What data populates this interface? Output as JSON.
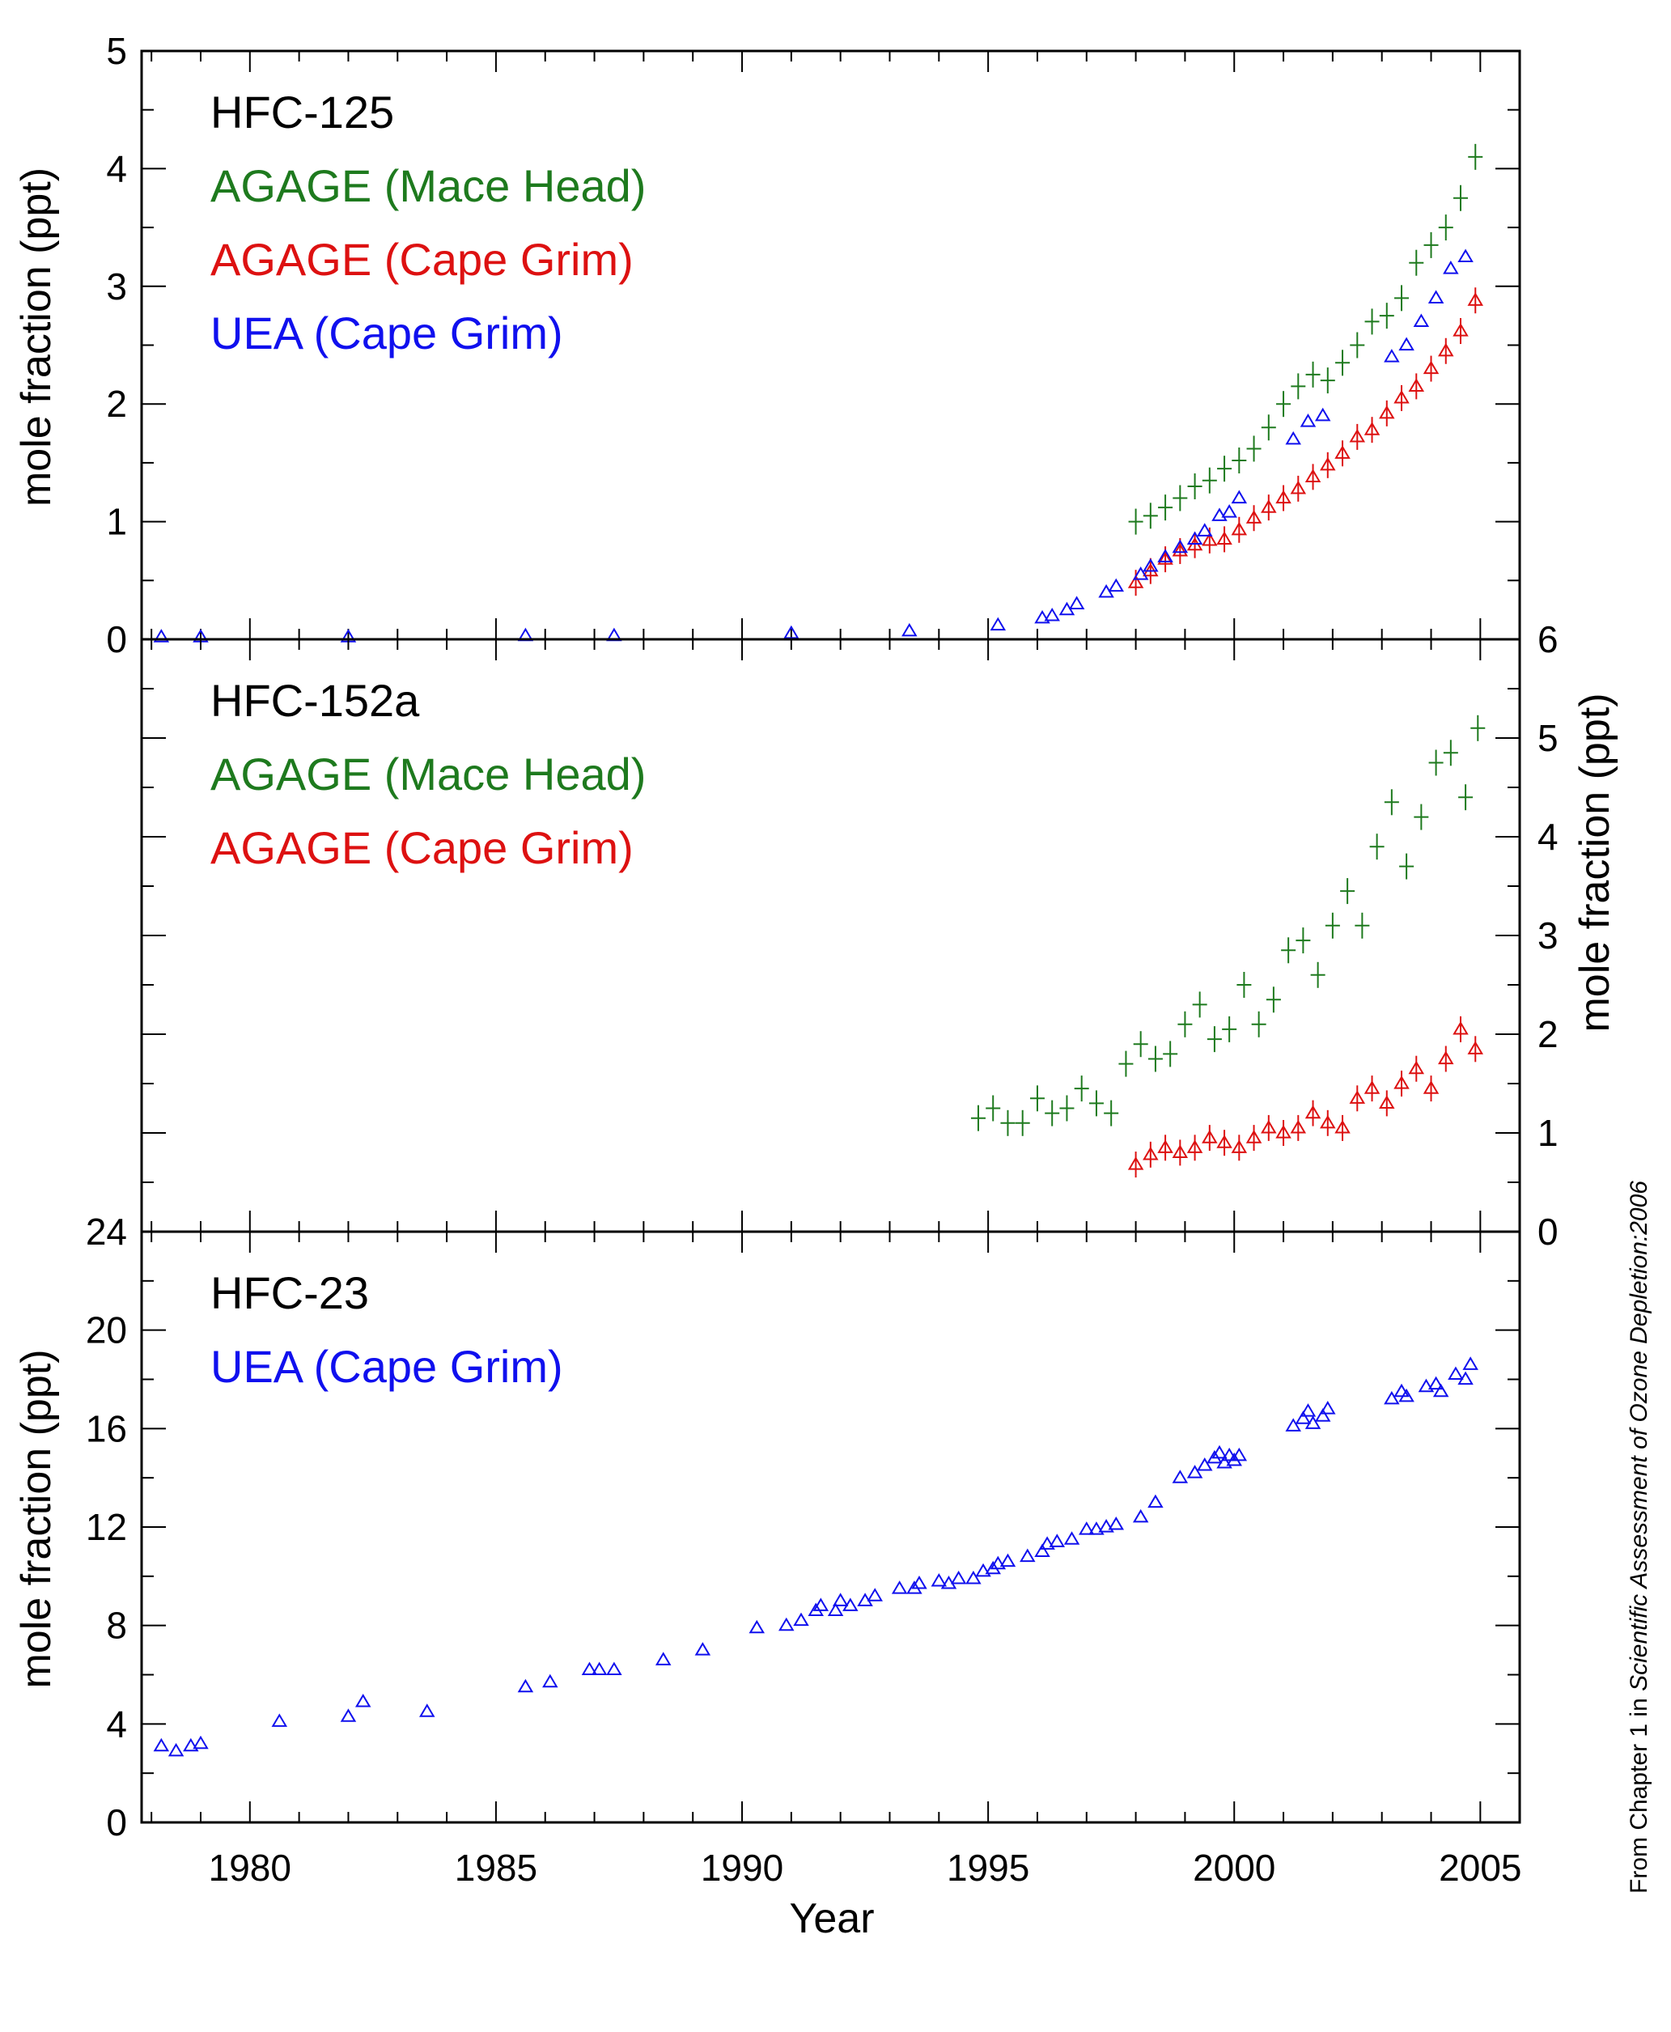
{
  "credit": {
    "prefix": "From Chapter 1 in ",
    "title": "Scientific Assessment of Ozone Depletion:2006"
  },
  "colors": {
    "green": "#1e7a1e",
    "red": "#dd1111",
    "blue": "#1010ee"
  },
  "chart_data": [
    {
      "type": "scatter",
      "title": "HFC-125",
      "ylabel": "mole fraction (ppt)",
      "xlabel": "",
      "xlim": [
        1977.8,
        2005.8
      ],
      "ylim": [
        0,
        5
      ],
      "yticks": [
        0,
        1,
        2,
        3,
        4,
        5
      ],
      "ytick_labels": [
        "0",
        "1",
        "2",
        "3",
        "4",
        "5"
      ],
      "yaxis_side": "left",
      "legend_position": "top-left",
      "grid": false,
      "series": [
        {
          "name": "AGAGE (Mace Head)",
          "color": "green",
          "marker": "plus-errorbar",
          "x": [
            1998.0,
            1998.3,
            1998.6,
            1998.9,
            1999.2,
            1999.5,
            1999.8,
            2000.1,
            2000.4,
            2000.7,
            2001.0,
            2001.3,
            2001.6,
            2001.9,
            2002.2,
            2002.5,
            2002.8,
            2003.1,
            2003.4,
            2003.7,
            2004.0,
            2004.3,
            2004.6,
            2004.9
          ],
          "y": [
            1.0,
            1.05,
            1.12,
            1.2,
            1.3,
            1.35,
            1.45,
            1.52,
            1.62,
            1.8,
            2.0,
            2.15,
            2.25,
            2.2,
            2.35,
            2.5,
            2.7,
            2.75,
            2.9,
            3.2,
            3.35,
            3.5,
            3.75,
            4.1
          ]
        },
        {
          "name": "AGAGE (Cape Grim)",
          "color": "red",
          "marker": "triangle-errorbar",
          "x": [
            1998.0,
            1998.3,
            1998.6,
            1998.9,
            1999.2,
            1999.5,
            1999.8,
            2000.1,
            2000.4,
            2000.7,
            2001.0,
            2001.3,
            2001.6,
            2001.9,
            2002.2,
            2002.5,
            2002.8,
            2003.1,
            2003.4,
            2003.7,
            2004.0,
            2004.3,
            2004.6,
            2004.9
          ],
          "y": [
            0.48,
            0.58,
            0.68,
            0.75,
            0.8,
            0.84,
            0.85,
            0.93,
            1.03,
            1.12,
            1.2,
            1.28,
            1.38,
            1.48,
            1.58,
            1.72,
            1.78,
            1.92,
            2.05,
            2.15,
            2.3,
            2.45,
            2.62,
            2.88
          ]
        },
        {
          "name": "UEA (Cape Grim)",
          "color": "blue",
          "marker": "triangle",
          "x": [
            1978.2,
            1979.0,
            1982.0,
            1985.6,
            1987.4,
            1991.0,
            1993.4,
            1995.2,
            1996.1,
            1996.3,
            1996.6,
            1996.8,
            1997.4,
            1997.6,
            1998.1,
            1998.3,
            1998.6,
            1998.9,
            1999.2,
            1999.4,
            1999.7,
            1999.9,
            2000.1,
            2001.2,
            2001.5,
            2001.8,
            2003.2,
            2003.5,
            2003.8,
            2004.1,
            2004.4,
            2004.7
          ],
          "y": [
            0.02,
            0.02,
            0.02,
            0.03,
            0.03,
            0.05,
            0.07,
            0.12,
            0.18,
            0.2,
            0.25,
            0.3,
            0.4,
            0.45,
            0.55,
            0.62,
            0.7,
            0.78,
            0.85,
            0.92,
            1.05,
            1.08,
            1.2,
            1.7,
            1.85,
            1.9,
            2.4,
            2.5,
            2.7,
            2.9,
            3.15,
            3.25
          ]
        }
      ]
    },
    {
      "type": "scatter",
      "title": "HFC-152a",
      "ylabel": "mole fraction (ppt)",
      "xlabel": "",
      "xlim": [
        1977.8,
        2005.8
      ],
      "ylim": [
        0,
        6
      ],
      "yticks": [
        0,
        1,
        2,
        3,
        4,
        5,
        6
      ],
      "ytick_labels": [
        "0",
        "1",
        "2",
        "3",
        "4",
        "5",
        "6"
      ],
      "yaxis_side": "right",
      "legend_position": "top-left",
      "grid": false,
      "series": [
        {
          "name": "AGAGE (Mace Head)",
          "color": "green",
          "marker": "plus-errorbar",
          "x": [
            1994.8,
            1995.1,
            1995.4,
            1995.7,
            1996.0,
            1996.3,
            1996.6,
            1996.9,
            1997.2,
            1997.5,
            1997.8,
            1998.1,
            1998.4,
            1998.7,
            1999.0,
            1999.3,
            1999.6,
            1999.9,
            2000.2,
            2000.5,
            2000.8,
            2001.1,
            2001.4,
            2001.7,
            2002.0,
            2002.3,
            2002.6,
            2002.9,
            2003.2,
            2003.5,
            2003.8,
            2004.1,
            2004.4,
            2004.7,
            2004.95
          ],
          "y": [
            1.15,
            1.25,
            1.1,
            1.1,
            1.35,
            1.2,
            1.25,
            1.45,
            1.3,
            1.2,
            1.7,
            1.9,
            1.75,
            1.8,
            2.1,
            2.3,
            1.95,
            2.05,
            2.5,
            2.1,
            2.35,
            2.85,
            2.95,
            2.6,
            3.1,
            3.45,
            3.1,
            3.9,
            4.35,
            3.7,
            4.2,
            4.75,
            4.85,
            4.4,
            5.1
          ]
        },
        {
          "name": "AGAGE (Cape Grim)",
          "color": "red",
          "marker": "triangle-errorbar",
          "x": [
            1998.0,
            1998.3,
            1998.6,
            1998.9,
            1999.2,
            1999.5,
            1999.8,
            2000.1,
            2000.4,
            2000.7,
            2001.0,
            2001.3,
            2001.6,
            2001.9,
            2002.2,
            2002.5,
            2002.8,
            2003.1,
            2003.4,
            2003.7,
            2004.0,
            2004.3,
            2004.6,
            2004.9
          ],
          "y": [
            0.68,
            0.78,
            0.85,
            0.8,
            0.85,
            0.95,
            0.9,
            0.85,
            0.95,
            1.05,
            1.0,
            1.05,
            1.2,
            1.1,
            1.05,
            1.35,
            1.45,
            1.3,
            1.5,
            1.65,
            1.45,
            1.75,
            2.05,
            1.85
          ]
        }
      ]
    },
    {
      "type": "scatter",
      "title": "HFC-23",
      "ylabel": "mole fraction (ppt)",
      "xlabel": "Year",
      "xlim": [
        1977.8,
        2005.8
      ],
      "ylim": [
        0,
        24
      ],
      "yticks": [
        0,
        4,
        8,
        12,
        16,
        20,
        24
      ],
      "ytick_labels": [
        "0",
        "4",
        "8",
        "12",
        "16",
        "20",
        "24"
      ],
      "xticks": [
        1980,
        1985,
        1990,
        1995,
        2000,
        2005
      ],
      "xtick_labels": [
        "1980",
        "1985",
        "1990",
        "1995",
        "2000",
        "2005"
      ],
      "yaxis_side": "left",
      "legend_position": "top-left",
      "grid": false,
      "series": [
        {
          "name": "UEA (Cape Grim)",
          "color": "blue",
          "marker": "triangle",
          "x": [
            1978.2,
            1978.5,
            1978.8,
            1979.0,
            1980.6,
            1982.0,
            1982.3,
            1983.6,
            1985.6,
            1986.1,
            1986.9,
            1987.1,
            1987.4,
            1988.4,
            1989.2,
            1990.3,
            1990.9,
            1991.2,
            1991.5,
            1991.6,
            1991.9,
            1992.0,
            1992.2,
            1992.5,
            1992.7,
            1993.2,
            1993.5,
            1993.6,
            1994.0,
            1994.2,
            1994.4,
            1994.7,
            1994.9,
            1995.1,
            1995.2,
            1995.4,
            1995.8,
            1996.1,
            1996.2,
            1996.4,
            1996.7,
            1997.0,
            1997.2,
            1997.4,
            1997.6,
            1998.1,
            1998.4,
            1998.9,
            1999.2,
            1999.4,
            1999.6,
            1999.7,
            1999.8,
            1999.9,
            2000.0,
            2000.1,
            2001.2,
            2001.4,
            2001.5,
            2001.6,
            2001.8,
            2001.9,
            2003.2,
            2003.4,
            2003.5,
            2003.9,
            2004.1,
            2004.2,
            2004.5,
            2004.7,
            2004.8
          ],
          "y": [
            3.1,
            2.9,
            3.1,
            3.2,
            4.1,
            4.3,
            4.9,
            4.5,
            5.5,
            5.7,
            6.2,
            6.2,
            6.2,
            6.6,
            7.0,
            7.9,
            8.0,
            8.2,
            8.6,
            8.8,
            8.6,
            9.0,
            8.8,
            9.0,
            9.2,
            9.5,
            9.5,
            9.7,
            9.8,
            9.7,
            9.9,
            9.9,
            10.2,
            10.3,
            10.5,
            10.6,
            10.8,
            11.0,
            11.3,
            11.4,
            11.5,
            11.9,
            11.9,
            12.0,
            12.1,
            12.4,
            13.0,
            14.0,
            14.2,
            14.5,
            14.8,
            15.0,
            14.6,
            14.9,
            14.7,
            14.9,
            16.1,
            16.4,
            16.7,
            16.2,
            16.5,
            16.8,
            17.2,
            17.5,
            17.3,
            17.7,
            17.8,
            17.5,
            18.2,
            18.0,
            18.6
          ]
        }
      ]
    }
  ]
}
